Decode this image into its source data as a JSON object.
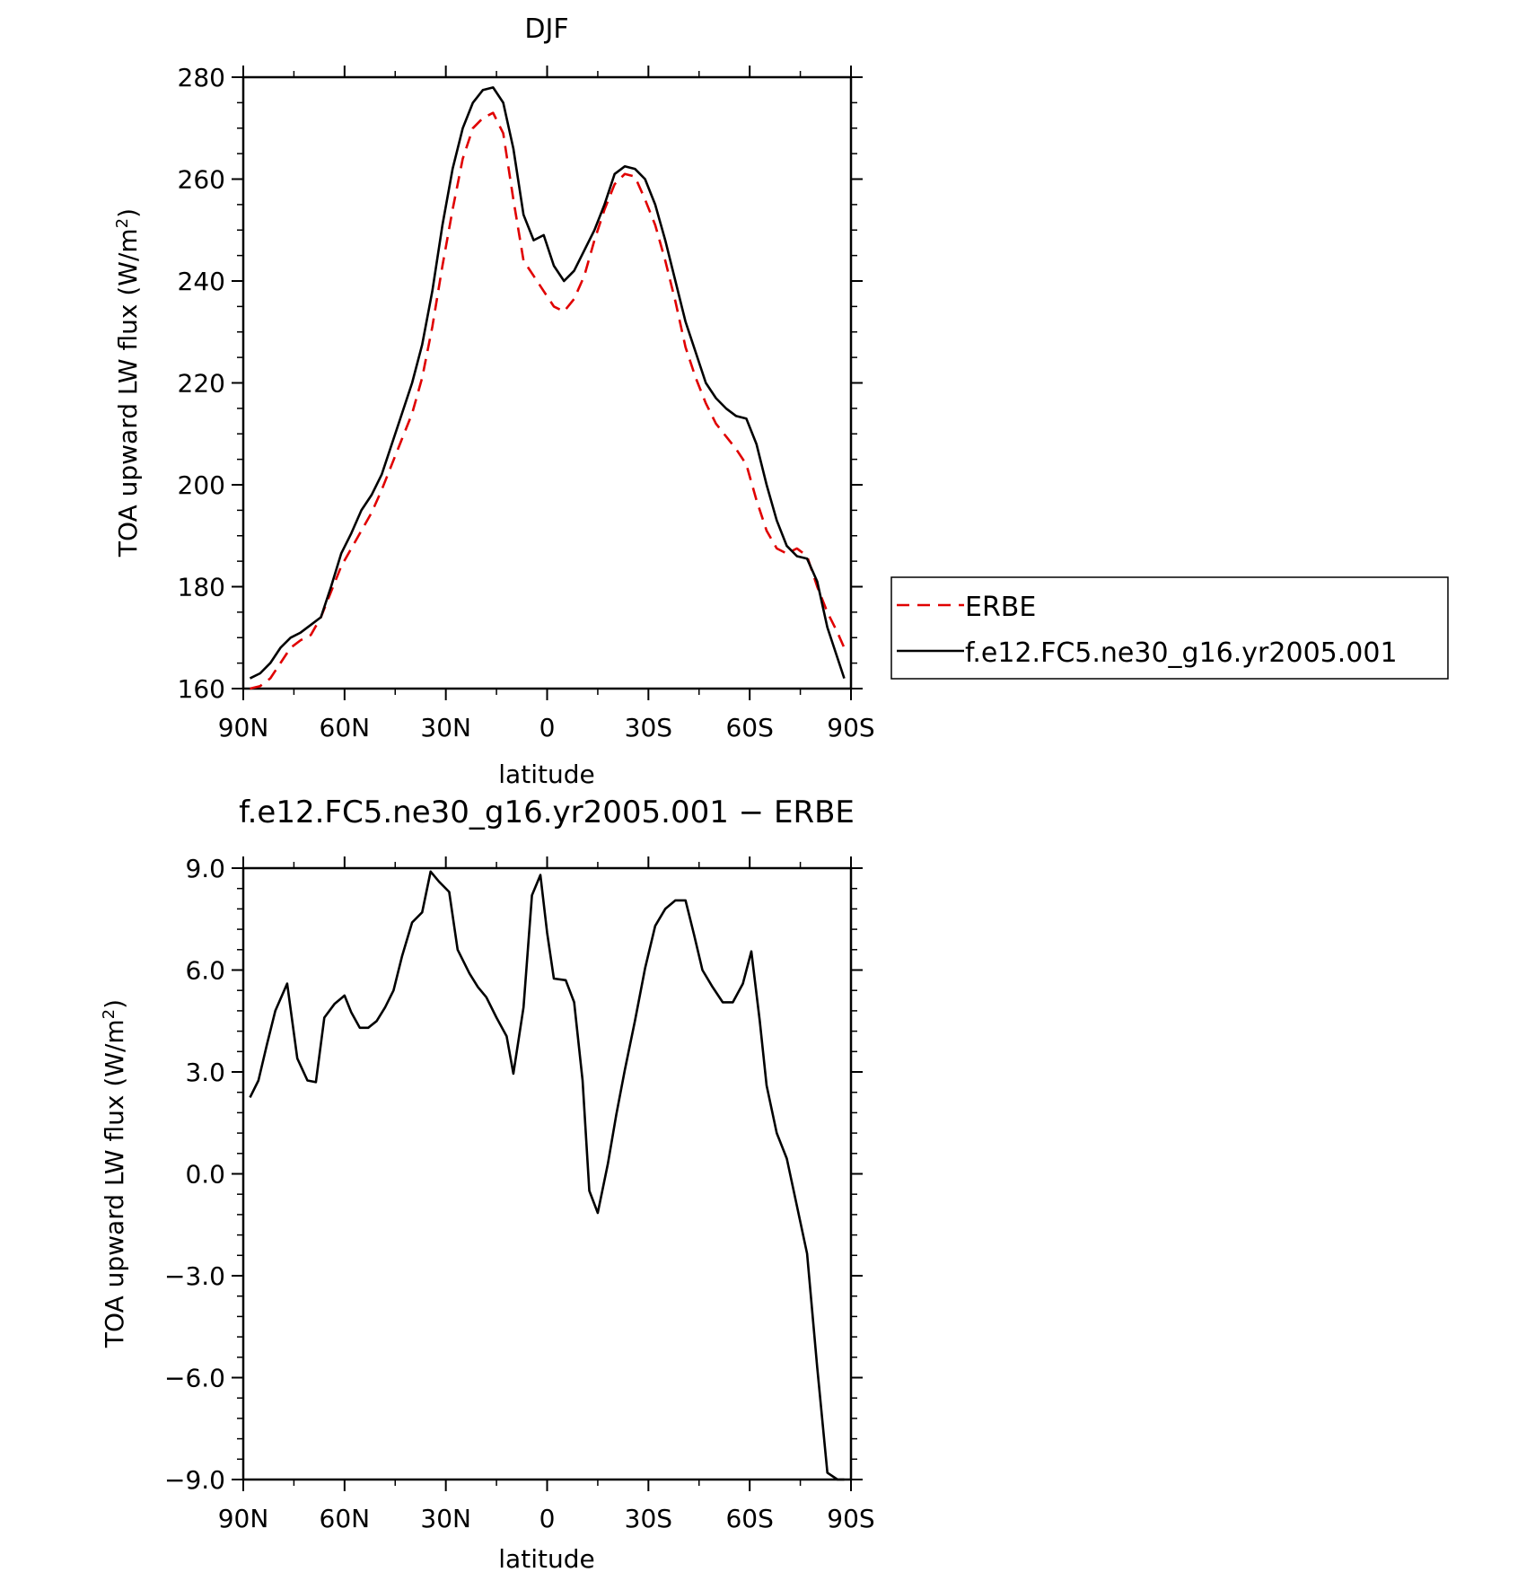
{
  "chart_data": [
    {
      "type": "line",
      "title": "DJF",
      "xlabel": "latitude",
      "ylabel": "TOA upward LW flux (W/m²)",
      "ylabel_main": "TOA upward LW flux (W/m",
      "ylabel_sup": "2",
      "ylabel_tail": ")",
      "xlim": [
        90,
        -90
      ],
      "ylim": [
        160,
        280
      ],
      "x_ticks": [
        {
          "value": 90,
          "label": "90N"
        },
        {
          "value": 60,
          "label": "60N"
        },
        {
          "value": 30,
          "label": "30N"
        },
        {
          "value": 0,
          "label": "0"
        },
        {
          "value": -30,
          "label": "30S"
        },
        {
          "value": -60,
          "label": "60S"
        },
        {
          "value": -90,
          "label": "90S"
        }
      ],
      "y_ticks": [
        {
          "value": 160,
          "label": "160"
        },
        {
          "value": 180,
          "label": "180"
        },
        {
          "value": 200,
          "label": "200"
        },
        {
          "value": 220,
          "label": "220"
        },
        {
          "value": 240,
          "label": "240"
        },
        {
          "value": 260,
          "label": "260"
        },
        {
          "value": 280,
          "label": "280"
        }
      ],
      "legend_position": "right",
      "series": [
        {
          "name": "ERBE",
          "color": "#e00000",
          "dash": "dashed",
          "x": [
            88,
            85,
            82,
            79,
            76,
            73,
            70,
            67,
            64,
            61,
            58,
            55,
            52,
            49,
            46,
            43,
            40,
            37,
            34,
            31,
            28,
            25,
            22,
            19,
            16,
            13,
            10,
            7,
            4,
            1,
            -2,
            -5,
            -8,
            -11,
            -14,
            -17,
            -20,
            -23,
            -26,
            -29,
            -32,
            -35,
            -38,
            -41,
            -44,
            -47,
            -50,
            -53,
            -56,
            -59,
            -62,
            -65,
            -68,
            -71,
            -74,
            -77,
            -80,
            -83,
            -86,
            -88
          ],
          "y": [
            160,
            160.5,
            162,
            165,
            168,
            169.5,
            170.5,
            174,
            179,
            184,
            187.5,
            191,
            194.5,
            199,
            204,
            209,
            214,
            221,
            231,
            243,
            254,
            264,
            270,
            272,
            273,
            269,
            256,
            244,
            241,
            238,
            235,
            234,
            236.5,
            241,
            248,
            254,
            259,
            261,
            260.5,
            256,
            251,
            244,
            236,
            227,
            221,
            216,
            212,
            209.5,
            207,
            204,
            197,
            191,
            187.5,
            186.5,
            187.5,
            186,
            180,
            175,
            171,
            168
          ]
        },
        {
          "name": "f.e12.FC5.ne30_g16.yr2005.001",
          "color": "#000000",
          "dash": "solid",
          "x": [
            88,
            85,
            82,
            79,
            76,
            73,
            70,
            67,
            64,
            61,
            58,
            55,
            52,
            49,
            46,
            43,
            40,
            37,
            34,
            31,
            28,
            25,
            22,
            19,
            16,
            13,
            10,
            7,
            4,
            1,
            -2,
            -5,
            -8,
            -11,
            -14,
            -17,
            -20,
            -23,
            -26,
            -29,
            -32,
            -35,
            -38,
            -41,
            -44,
            -47,
            -50,
            -53,
            -56,
            -59,
            -62,
            -65,
            -68,
            -71,
            -74,
            -77,
            -80,
            -83,
            -86,
            -88
          ],
          "y": [
            162,
            163,
            165,
            168,
            170,
            171,
            172.5,
            174,
            180,
            186.5,
            190.5,
            195,
            198,
            202,
            208,
            214,
            220,
            227.5,
            238,
            251,
            262,
            270,
            275,
            277.5,
            278,
            275,
            266,
            253,
            248,
            249,
            243,
            240,
            242,
            246,
            250,
            255,
            261,
            262.5,
            262,
            260,
            255,
            248,
            240,
            232,
            226,
            220,
            217,
            215,
            213.5,
            213,
            208,
            200,
            193,
            188,
            186,
            185.5,
            181,
            172,
            166,
            162
          ]
        }
      ]
    },
    {
      "type": "line",
      "title": "f.e12.FC5.ne30_g16.yr2005.001 − ERBE",
      "xlabel": "latitude",
      "ylabel": "TOA upward LW flux (W/m²)",
      "ylabel_main": "TOA upward LW flux (W/m",
      "ylabel_sup": "2",
      "ylabel_tail": ")",
      "xlim": [
        90,
        -90
      ],
      "ylim": [
        -9,
        9
      ],
      "x_ticks": [
        {
          "value": 90,
          "label": "90N"
        },
        {
          "value": 60,
          "label": "60N"
        },
        {
          "value": 30,
          "label": "30N"
        },
        {
          "value": 0,
          "label": "0"
        },
        {
          "value": -30,
          "label": "30S"
        },
        {
          "value": -60,
          "label": "60S"
        },
        {
          "value": -90,
          "label": "90S"
        }
      ],
      "y_ticks": [
        {
          "value": 9,
          "label": "9.0"
        },
        {
          "value": 6,
          "label": "6.0"
        },
        {
          "value": 3,
          "label": "3.0"
        },
        {
          "value": 0,
          "label": "0.0"
        },
        {
          "value": -3,
          "label": "−3.0"
        },
        {
          "value": -6,
          "label": "−6.0"
        },
        {
          "value": -9,
          "label": "−9.0"
        }
      ],
      "series": [
        {
          "name": "",
          "color": "#000000",
          "dash": "solid",
          "x": [
            88,
            85.5,
            83,
            80.5,
            77,
            74,
            71,
            68.5,
            66,
            63,
            60,
            58,
            55.5,
            53,
            50.5,
            48,
            45.5,
            43,
            40,
            37,
            34.5,
            32,
            29,
            26.5,
            23,
            20.5,
            18,
            15,
            12,
            10,
            7,
            4.5,
            2,
            0,
            -2,
            -5.5,
            -8,
            -10.5,
            -12.5,
            -15,
            -18,
            -20.5,
            -23,
            -26,
            -29,
            -32,
            -35,
            -38,
            -41,
            -43.5,
            -46,
            -49,
            -52,
            -55,
            -58,
            -60.5,
            -63,
            -65,
            -68,
            -71,
            -74,
            -77,
            -80,
            -83,
            -86,
            -88
          ],
          "y": [
            2.25,
            2.75,
            3.8,
            4.8,
            5.6,
            3.4,
            2.75,
            2.7,
            4.6,
            5,
            5.25,
            4.75,
            4.3,
            4.3,
            4.5,
            4.9,
            5.4,
            6.4,
            7.4,
            7.7,
            8.9,
            8.6,
            8.3,
            6.6,
            5.9,
            5.5,
            5.2,
            4.6,
            4.05,
            2.95,
            4.9,
            8.2,
            8.8,
            7.1,
            5.75,
            5.7,
            5.05,
            2.75,
            -0.5,
            -1.15,
            0.3,
            1.75,
            3.05,
            4.5,
            6.05,
            7.3,
            7.8,
            8.05,
            8.05,
            7.05,
            6,
            5.5,
            5.05,
            5.05,
            5.6,
            6.55,
            4.5,
            2.6,
            1.2,
            0.45,
            -0.95,
            -2.35,
            -5.7,
            -8.8,
            -9,
            -9
          ]
        }
      ]
    }
  ]
}
